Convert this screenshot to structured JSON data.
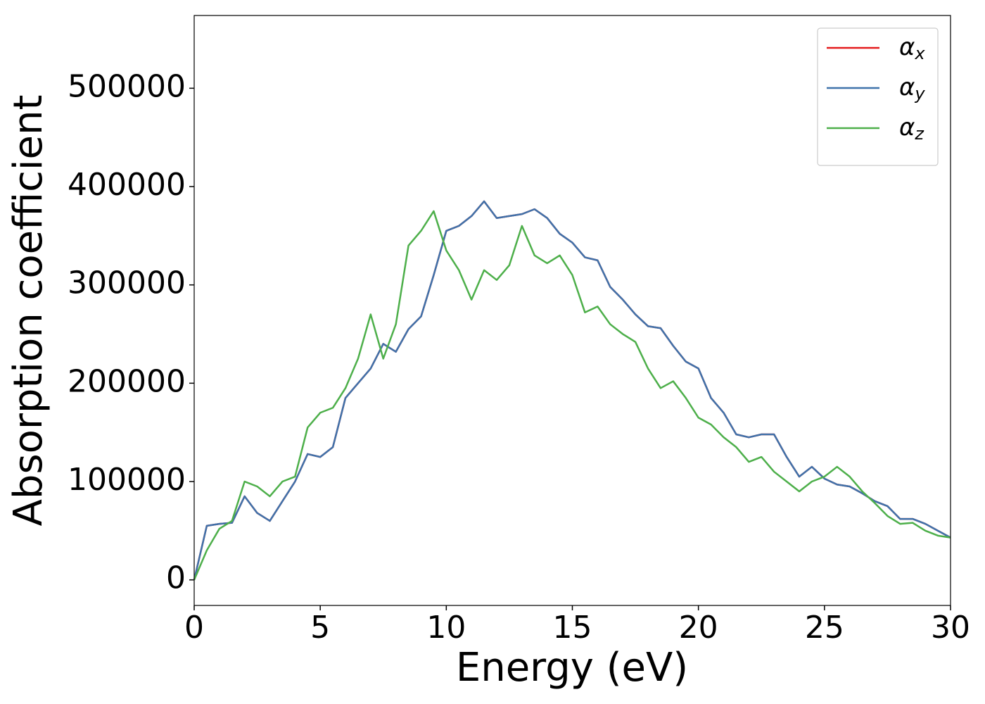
{
  "chart_data": {
    "type": "line",
    "xlabel": "Energy (eV)",
    "ylabel": "Absorption coefficient",
    "x": [
      0,
      0.5,
      1,
      1.5,
      2,
      2.5,
      3,
      3.5,
      4,
      4.5,
      5,
      5.5,
      6,
      6.5,
      7,
      7.5,
      8,
      8.5,
      9,
      9.5,
      10,
      10.5,
      11,
      11.5,
      12,
      12.5,
      13,
      13.5,
      14,
      14.5,
      15,
      15.5,
      16,
      16.5,
      17,
      17.5,
      18,
      18.5,
      19,
      19.5,
      20,
      20.5,
      21,
      21.5,
      22,
      22.5,
      23,
      23.5,
      24,
      24.5,
      25,
      25.5,
      26,
      26.5,
      27,
      27.5,
      28,
      28.5,
      29,
      29.5,
      30
    ],
    "series": [
      {
        "name": "αx",
        "color": "#e41a1c",
        "values": [
          0,
          55000,
          57000,
          58000,
          85000,
          68000,
          60000,
          80000,
          100000,
          128000,
          125000,
          135000,
          185000,
          200000,
          215000,
          240000,
          232000,
          255000,
          268000,
          310000,
          355000,
          360000,
          370000,
          385000,
          368000,
          370000,
          372000,
          377000,
          368000,
          352000,
          343000,
          328000,
          325000,
          298000,
          285000,
          270000,
          258000,
          256000,
          238000,
          222000,
          215000,
          185000,
          170000,
          148000,
          145000,
          148000,
          148000,
          125000,
          105000,
          115000,
          103000,
          97000,
          95000,
          88000,
          80000,
          75000,
          62000,
          62000,
          57000,
          50000,
          43000
        ]
      },
      {
        "name": "αy",
        "color": "#3f72aa",
        "values": [
          0,
          55000,
          57000,
          58000,
          85000,
          68000,
          60000,
          80000,
          100000,
          128000,
          125000,
          135000,
          185000,
          200000,
          215000,
          240000,
          232000,
          255000,
          268000,
          310000,
          355000,
          360000,
          370000,
          385000,
          368000,
          370000,
          372000,
          377000,
          368000,
          352000,
          343000,
          328000,
          325000,
          298000,
          285000,
          270000,
          258000,
          256000,
          238000,
          222000,
          215000,
          185000,
          170000,
          148000,
          145000,
          148000,
          148000,
          125000,
          105000,
          115000,
          103000,
          97000,
          95000,
          88000,
          80000,
          75000,
          62000,
          62000,
          57000,
          50000,
          43000
        ]
      },
      {
        "name": "αz",
        "color": "#4daf4a",
        "values": [
          0,
          30000,
          52000,
          60000,
          100000,
          95000,
          85000,
          100000,
          105000,
          155000,
          170000,
          175000,
          195000,
          225000,
          270000,
          225000,
          260000,
          340000,
          355000,
          375000,
          335000,
          315000,
          285000,
          315000,
          305000,
          320000,
          360000,
          330000,
          322000,
          330000,
          310000,
          272000,
          278000,
          260000,
          250000,
          242000,
          215000,
          195000,
          202000,
          185000,
          165000,
          158000,
          145000,
          135000,
          120000,
          125000,
          110000,
          100000,
          90000,
          100000,
          105000,
          115000,
          105000,
          90000,
          78000,
          65000,
          57000,
          58000,
          50000,
          45000,
          43000
        ]
      }
    ],
    "xlim": [
      0,
      30
    ],
    "xticks": [
      0,
      5,
      10,
      15,
      20,
      25,
      30
    ],
    "ylim": [
      -26000,
      574000
    ],
    "yticks": [
      0,
      100000,
      200000,
      300000,
      400000,
      500000
    ],
    "legend": "upper right",
    "grid": false
  }
}
